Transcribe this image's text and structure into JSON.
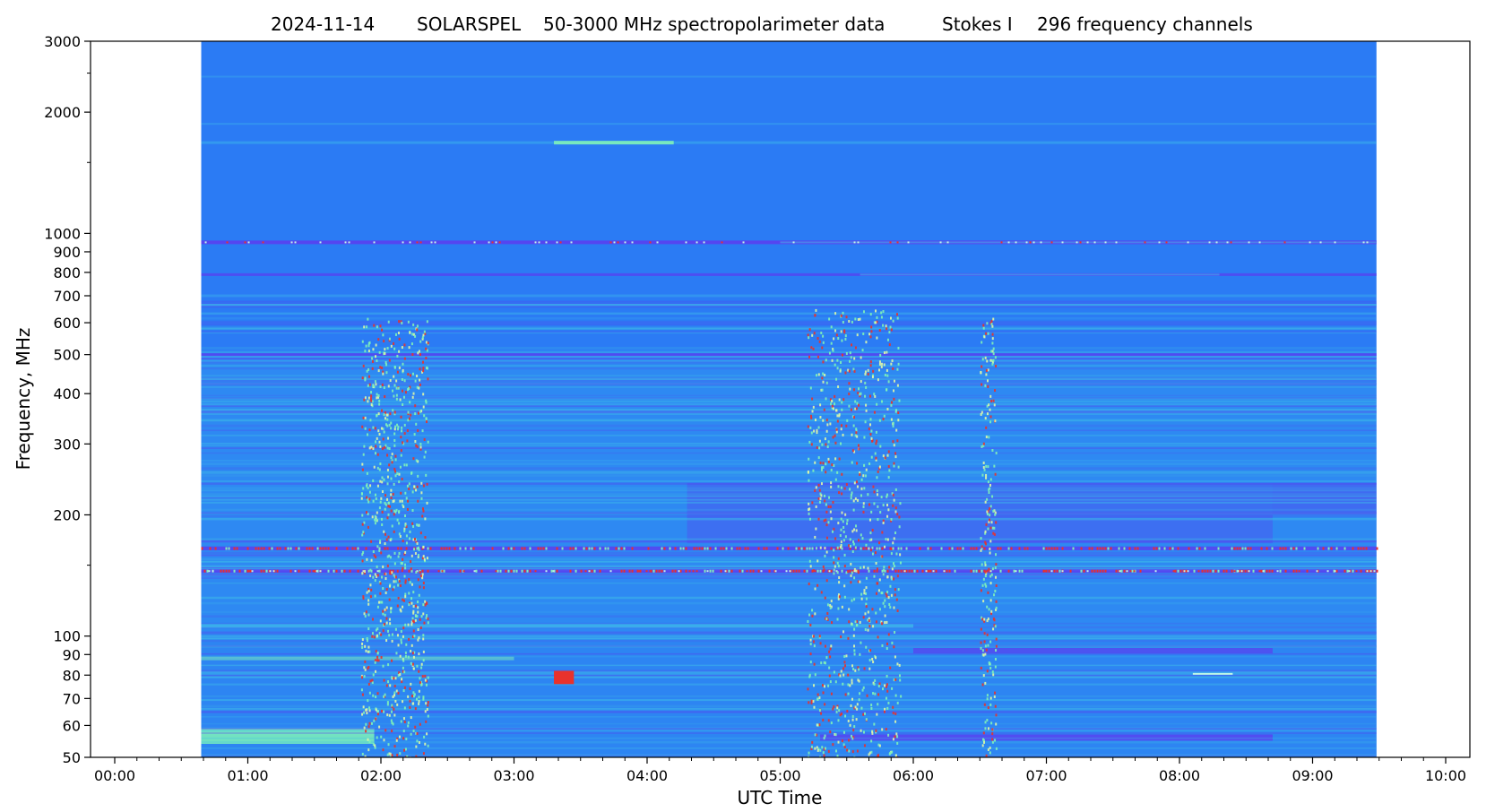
{
  "chart_data": {
    "type": "heatmap",
    "title_parts": [
      "2024-11-14",
      "SOLARSPEL",
      "50-3000 MHz spectropolarimeter data",
      "Stokes I",
      "296 frequency channels"
    ],
    "xlabel": "UTC Time",
    "ylabel": "Frequency, MHz",
    "x_domain_hours": [
      0,
      10
    ],
    "y_domain_mhz": [
      50,
      3000
    ],
    "y_scale": "log",
    "x_ticks": [
      "00:00",
      "01:00",
      "02:00",
      "03:00",
      "04:00",
      "05:00",
      "06:00",
      "07:00",
      "08:00",
      "09:00",
      "10:00"
    ],
    "y_ticks": [
      50,
      60,
      70,
      80,
      90,
      100,
      200,
      300,
      400,
      500,
      600,
      700,
      800,
      900,
      1000,
      2000,
      3000
    ],
    "data_coverage_hours": [
      0.65,
      9.48
    ],
    "colormap": "rainbow",
    "colors": {
      "background_level": "#2b7bf4",
      "elevated": "#3fbfe8",
      "high": "#7ff2b8",
      "peak": "#e8322c",
      "depressed": "#5a3ff0"
    },
    "burst_intervals_hours": [
      [
        1.85,
        2.35
      ],
      [
        5.2,
        5.9
      ],
      [
        6.5,
        6.62
      ]
    ],
    "interference_lines_mhz": [
      165,
      145,
      1680,
      950,
      790
    ]
  }
}
